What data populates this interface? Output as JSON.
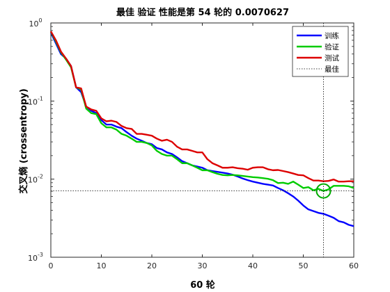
{
  "chart_data": {
    "type": "line",
    "title": "最佳 验证 性能是第 54 轮的 0.0070627",
    "xlabel": "60 轮",
    "ylabel": "交叉熵 (crossentropy)",
    "xlim": [
      0,
      60
    ],
    "ylim": [
      0.001,
      1
    ],
    "y_scale": "log",
    "x_ticks": [
      "0",
      "10",
      "20",
      "30",
      "40",
      "50",
      "60"
    ],
    "x_tick_values": [
      0,
      10,
      20,
      30,
      40,
      50,
      60
    ],
    "y_tick_values": [
      0.001,
      0.01,
      0.1,
      1
    ],
    "y_tick_bases": [
      "10",
      "10",
      "10",
      "10"
    ],
    "y_tick_exponents": [
      "-3",
      "-2",
      "-1",
      "0"
    ],
    "grid": false,
    "legend_position": "top-right",
    "best": {
      "epoch": 54,
      "value": 0.0070627,
      "label": "最佳"
    },
    "series": [
      {
        "name": "训练",
        "color": "#0000ff",
        "x": [
          0,
          1,
          2,
          3,
          4,
          5,
          6,
          7,
          8,
          9,
          10,
          11,
          12,
          13,
          14,
          15,
          16,
          17,
          18,
          19,
          20,
          21,
          22,
          23,
          24,
          25,
          26,
          27,
          28,
          29,
          30,
          31,
          32,
          33,
          34,
          35,
          36,
          37,
          38,
          39,
          40,
          41,
          42,
          43,
          44,
          45,
          46,
          47,
          48,
          49,
          50,
          51,
          52,
          53,
          54,
          55,
          56,
          57,
          58,
          59,
          60
        ],
        "values": [
          0.75,
          0.55,
          0.4,
          0.35,
          0.28,
          0.15,
          0.13,
          0.085,
          0.075,
          0.07,
          0.057,
          0.05,
          0.05,
          0.047,
          0.045,
          0.04,
          0.036,
          0.033,
          0.031,
          0.029,
          0.028,
          0.025,
          0.024,
          0.022,
          0.021,
          0.019,
          0.017,
          0.016,
          0.015,
          0.0145,
          0.014,
          0.013,
          0.0127,
          0.0124,
          0.0121,
          0.0118,
          0.0114,
          0.0108,
          0.0102,
          0.0097,
          0.0093,
          0.009,
          0.0087,
          0.0085,
          0.0083,
          0.0077,
          0.0072,
          0.0066,
          0.006,
          0.0053,
          0.0046,
          0.0041,
          0.0039,
          0.0037,
          0.0036,
          0.0034,
          0.0032,
          0.0029,
          0.0028,
          0.0026,
          0.0025
        ]
      },
      {
        "name": "验证",
        "color": "#00cc00",
        "x": [
          0,
          1,
          2,
          3,
          4,
          5,
          6,
          7,
          8,
          9,
          10,
          11,
          12,
          13,
          14,
          15,
          16,
          17,
          18,
          19,
          20,
          21,
          22,
          23,
          24,
          25,
          26,
          27,
          28,
          29,
          30,
          31,
          32,
          33,
          34,
          35,
          36,
          37,
          38,
          39,
          40,
          41,
          42,
          43,
          44,
          45,
          46,
          47,
          48,
          49,
          50,
          51,
          52,
          53,
          54,
          55,
          56,
          57,
          58,
          59,
          60
        ],
        "values": [
          0.77,
          0.58,
          0.42,
          0.34,
          0.27,
          0.15,
          0.14,
          0.08,
          0.07,
          0.068,
          0.052,
          0.046,
          0.046,
          0.043,
          0.038,
          0.036,
          0.033,
          0.03,
          0.03,
          0.029,
          0.027,
          0.023,
          0.021,
          0.02,
          0.02,
          0.018,
          0.016,
          0.016,
          0.015,
          0.014,
          0.013,
          0.013,
          0.0123,
          0.0117,
          0.0113,
          0.0112,
          0.0113,
          0.0112,
          0.011,
          0.0108,
          0.0106,
          0.0105,
          0.0103,
          0.0101,
          0.0097,
          0.0089,
          0.009,
          0.0087,
          0.0093,
          0.0085,
          0.0077,
          0.0079,
          0.0072,
          0.0075,
          0.0070627,
          0.0074,
          0.0082,
          0.0082,
          0.0082,
          0.0081,
          0.0077
        ]
      },
      {
        "name": "测试",
        "color": "#dd0000",
        "x": [
          0,
          1,
          2,
          3,
          4,
          5,
          6,
          7,
          8,
          9,
          10,
          11,
          12,
          13,
          14,
          15,
          16,
          17,
          18,
          19,
          20,
          21,
          22,
          23,
          24,
          25,
          26,
          27,
          28,
          29,
          30,
          31,
          32,
          33,
          34,
          35,
          36,
          37,
          38,
          39,
          40,
          41,
          42,
          43,
          44,
          45,
          46,
          47,
          48,
          49,
          50,
          51,
          52,
          53,
          54,
          55,
          56,
          57,
          58,
          59,
          60
        ],
        "values": [
          0.78,
          0.6,
          0.43,
          0.35,
          0.28,
          0.15,
          0.145,
          0.085,
          0.078,
          0.075,
          0.06,
          0.055,
          0.056,
          0.054,
          0.048,
          0.045,
          0.044,
          0.038,
          0.038,
          0.037,
          0.036,
          0.033,
          0.031,
          0.032,
          0.03,
          0.026,
          0.024,
          0.024,
          0.023,
          0.022,
          0.022,
          0.018,
          0.016,
          0.015,
          0.014,
          0.014,
          0.0142,
          0.0138,
          0.0136,
          0.0132,
          0.014,
          0.0142,
          0.0142,
          0.0134,
          0.013,
          0.0131,
          0.0127,
          0.0123,
          0.0118,
          0.0113,
          0.0112,
          0.0103,
          0.0096,
          0.0096,
          0.0094,
          0.0095,
          0.0099,
          0.0093,
          0.0093,
          0.0094,
          0.0094
        ]
      }
    ]
  }
}
